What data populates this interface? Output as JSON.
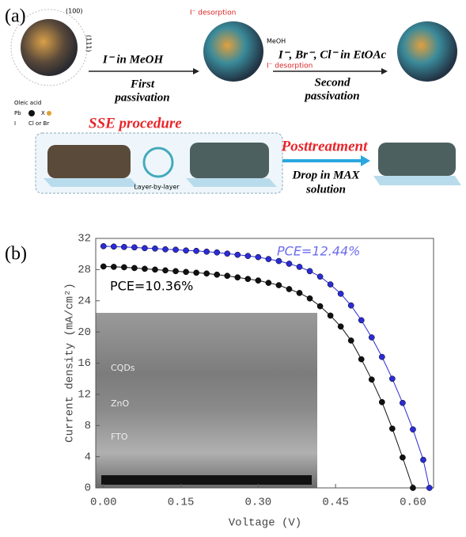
{
  "panel_a": {
    "label": "(a)",
    "step1_reagent": "I⁻ in MeOH",
    "step1_name": [
      "First",
      "passivation"
    ],
    "step2_reagent": "I⁻, Br⁻, Cl⁻ in EtOAc",
    "step2_name": [
      "Second",
      "passivation"
    ],
    "facets": [
      "(100)",
      "(111)"
    ],
    "desorption": "I⁻ desorption",
    "solvent": "MeOH",
    "legend": [
      "Oleic acid",
      "Pb",
      "X",
      "I",
      "Cl or Br"
    ],
    "sse": "SSE procedure",
    "layer": "Layer-by-layer",
    "posttreatment": "Posttreatment",
    "drop": [
      "Drop in MAX",
      "solution"
    ]
  },
  "chart_data": {
    "type": "scatter",
    "panel_label": "(b)",
    "xlabel": "Voltage (V)",
    "ylabel": "Current density (mA/cm²)",
    "xlim": [
      -0.015,
      0.64
    ],
    "ylim": [
      0,
      32
    ],
    "xticks": [
      {
        "value": 0,
        "label": "0.00"
      },
      0.15,
      {
        "value": 0.3,
        "label": "0.30"
      },
      0.45,
      {
        "value": 0.6,
        "label": "0.60"
      }
    ],
    "yticks": [
      0,
      4,
      8,
      12,
      16,
      20,
      24,
      28,
      32
    ],
    "annotations": [
      "PCE=12.44%",
      "PCE=10.36%"
    ],
    "inset_labels": [
      "CQDs",
      "ZnO",
      "FTO"
    ],
    "series": [
      {
        "color": "#2b2bd6",
        "x": [
          0,
          0.02,
          0.04,
          0.06,
          0.08,
          0.1,
          0.12,
          0.14,
          0.16,
          0.18,
          0.2,
          0.22,
          0.24,
          0.26,
          0.28,
          0.3,
          0.32,
          0.34,
          0.36,
          0.38,
          0.4,
          0.42,
          0.44,
          0.46,
          0.48,
          0.5,
          0.52,
          0.54,
          0.56,
          0.58,
          0.6,
          0.62,
          0.632
        ],
        "values": [
          31.0,
          30.95,
          30.9,
          30.85,
          30.75,
          30.7,
          30.6,
          30.55,
          30.45,
          30.4,
          30.3,
          30.2,
          30.05,
          29.9,
          29.75,
          29.6,
          29.35,
          29.1,
          28.75,
          28.35,
          27.8,
          27.1,
          26.1,
          24.9,
          23.4,
          21.5,
          19.3,
          16.8,
          14.0,
          10.9,
          7.5,
          3.6,
          0
        ]
      },
      {
        "color": "#111111",
        "x": [
          0,
          0.02,
          0.04,
          0.06,
          0.08,
          0.1,
          0.12,
          0.14,
          0.16,
          0.18,
          0.2,
          0.22,
          0.24,
          0.26,
          0.28,
          0.3,
          0.32,
          0.34,
          0.36,
          0.38,
          0.4,
          0.42,
          0.44,
          0.46,
          0.48,
          0.5,
          0.52,
          0.54,
          0.56,
          0.58,
          0.6
        ],
        "values": [
          28.4,
          28.35,
          28.3,
          28.2,
          28.1,
          28.0,
          27.9,
          27.8,
          27.7,
          27.6,
          27.5,
          27.35,
          27.2,
          27.0,
          26.8,
          26.6,
          26.3,
          26.0,
          25.5,
          25.0,
          24.3,
          23.3,
          22.1,
          20.7,
          18.9,
          16.5,
          13.9,
          11.0,
          7.6,
          3.9,
          0
        ]
      }
    ]
  }
}
